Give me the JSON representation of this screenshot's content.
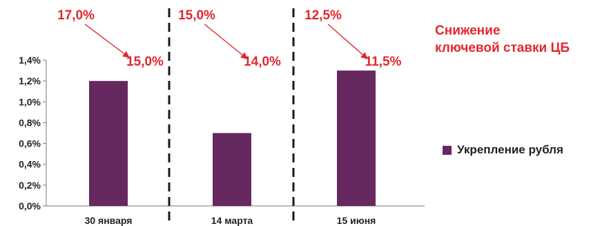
{
  "chart_data": {
    "type": "bar",
    "categories": [
      "30 января",
      "14 марта",
      "15 июня"
    ],
    "series": [
      {
        "name": "Укрепление рубля",
        "values": [
          1.2,
          0.7,
          1.3
        ],
        "color": "#66295f"
      }
    ],
    "ylim": [
      0,
      1.4
    ],
    "yticks": [
      "0,0%",
      "0,2%",
      "0,4%",
      "0,6%",
      "0,8%",
      "1,0%",
      "1,2%",
      "1,4%"
    ],
    "grid": false,
    "legend_position": "right",
    "annotations": [
      {
        "from": "17,0%",
        "to": "15,0%"
      },
      {
        "from": "15,0%",
        "to": "14,0%"
      },
      {
        "from": "12,5%",
        "to": "11,5%"
      }
    ],
    "note_lines": [
      "Снижение",
      "ключевой ставки ЦБ"
    ],
    "annotation_color": "#e0282e"
  }
}
